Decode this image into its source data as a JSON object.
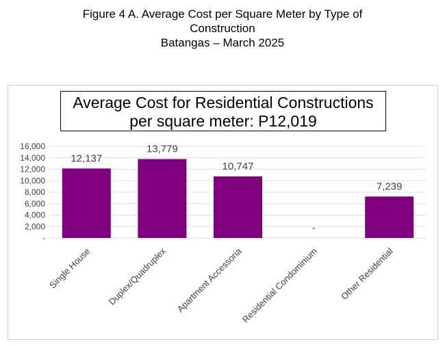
{
  "figure": {
    "title_line1": "Figure 4 A. Average Cost per Square Meter by Type of",
    "title_line2": "Construction",
    "title_line3": "Batangas – March 2025"
  },
  "chart_data": {
    "type": "bar",
    "title_line1": "Average Cost for Residential Constructions",
    "title_line2": "per square meter: P12,019",
    "categories": [
      "Single House",
      "Duplex/Quadruplex",
      "Apartment Accessoria",
      "Residential Condominium",
      "Other Residential"
    ],
    "values": [
      12137,
      13779,
      10747,
      0,
      7239
    ],
    "data_labels": [
      "12,137",
      "13,779",
      "10,747",
      "-",
      "7,239"
    ],
    "ylim": [
      0,
      16000
    ],
    "yticks": [
      0,
      2000,
      4000,
      6000,
      8000,
      10000,
      12000,
      14000,
      16000
    ],
    "ytick_labels": [
      "-",
      "2,000",
      "4,000",
      "6,000",
      "8,000",
      "10,000",
      "12,000",
      "14,000",
      "16,000"
    ],
    "bar_color": "#800080",
    "grid": true,
    "xlabel": "",
    "ylabel": ""
  }
}
